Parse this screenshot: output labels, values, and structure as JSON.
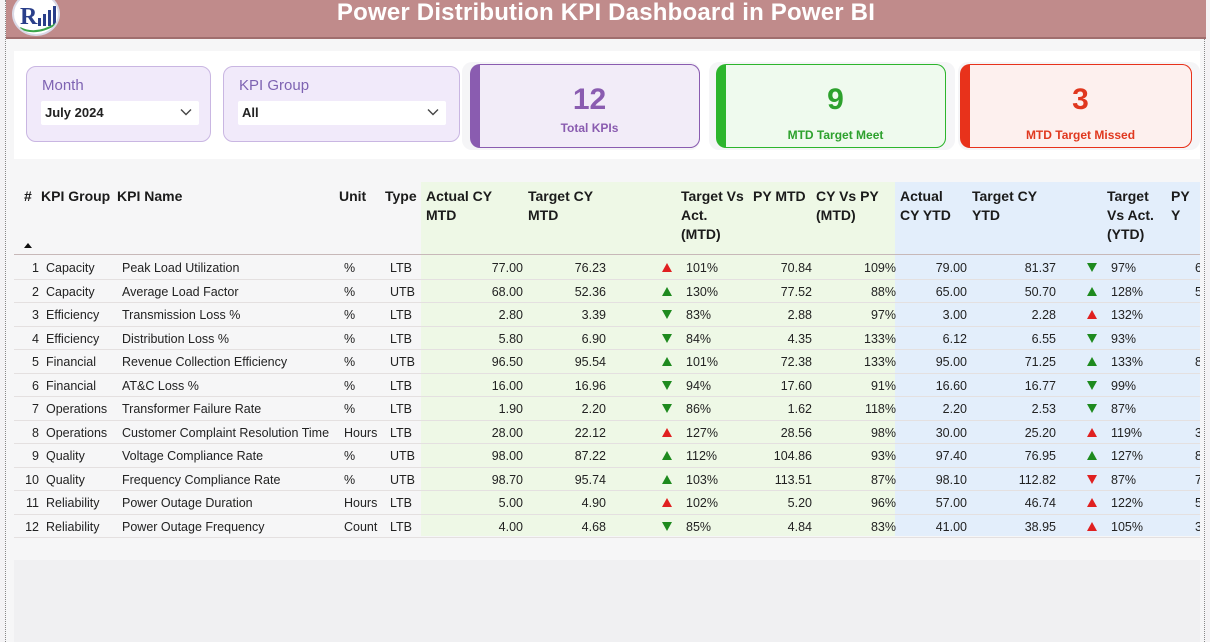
{
  "title": "Power Distribution KPI Dashboard in Power BI",
  "colors": {
    "title_bg": "#c08b8b",
    "total_accent": "#8a5cb0",
    "meet_accent": "#2db52d",
    "missed_accent": "#e8321b",
    "up_neutral": "#1e8a1e",
    "bad": "#e02020"
  },
  "slicers": {
    "month": {
      "label": "Month",
      "value": "July 2024"
    },
    "kpi_group": {
      "label": "KPI Group",
      "value": "All"
    }
  },
  "cards": {
    "total": {
      "value": "12",
      "caption": "Total KPIs"
    },
    "meet": {
      "value": "9",
      "caption": "MTD Target Meet"
    },
    "missed": {
      "value": "3",
      "caption": "MTD Target Missed"
    }
  },
  "table": {
    "headers": {
      "num": "#",
      "group": "KPI Group",
      "name": "KPI Name",
      "unit": "Unit",
      "type": "Type",
      "actual_mtd_1": "Actual CY",
      "actual_mtd_2": "MTD",
      "target_mtd_1": "Target CY",
      "target_mtd_2": "MTD",
      "tva_mtd_1": "Target Vs",
      "tva_mtd_2": "Act.",
      "tva_mtd_3": "(MTD)",
      "py_mtd": "PY MTD",
      "cyvspy_1": "CY Vs PY",
      "cyvspy_2": "(MTD)",
      "actual_ytd_1": "Actual",
      "actual_ytd_2": "CY YTD",
      "target_ytd_1": "Target CY",
      "target_ytd_2": "YTD",
      "tva_ytd_1": "Target",
      "tva_ytd_2": "Vs Act.",
      "tva_ytd_3": "(YTD)",
      "py_ytd": "PY Y"
    },
    "rows": [
      {
        "num": "1",
        "group": "Capacity",
        "name": "Peak Load Utilization",
        "unit": "%",
        "type": "LTB",
        "act_mtd": "77.00",
        "tgt_mtd": "76.23",
        "mtd_icon": "up-red",
        "tva_mtd": "101%",
        "py_mtd": "70.84",
        "cyvspy": "109%",
        "act_ytd": "79.00",
        "tgt_ytd": "81.37",
        "ytd_icon": "down-green",
        "tva_ytd": "97%",
        "py_ytd": "6"
      },
      {
        "num": "2",
        "group": "Capacity",
        "name": "Average Load Factor",
        "unit": "%",
        "type": "UTB",
        "act_mtd": "68.00",
        "tgt_mtd": "52.36",
        "mtd_icon": "up-green",
        "tva_mtd": "130%",
        "py_mtd": "77.52",
        "cyvspy": "88%",
        "act_ytd": "65.00",
        "tgt_ytd": "50.70",
        "ytd_icon": "up-green",
        "tva_ytd": "128%",
        "py_ytd": "5"
      },
      {
        "num": "3",
        "group": "Efficiency",
        "name": "Transmission Loss %",
        "unit": "%",
        "type": "LTB",
        "act_mtd": "2.80",
        "tgt_mtd": "3.39",
        "mtd_icon": "down-green",
        "tva_mtd": "83%",
        "py_mtd": "2.88",
        "cyvspy": "97%",
        "act_ytd": "3.00",
        "tgt_ytd": "2.28",
        "ytd_icon": "up-red",
        "tva_ytd": "132%",
        "py_ytd": ""
      },
      {
        "num": "4",
        "group": "Efficiency",
        "name": "Distribution Loss %",
        "unit": "%",
        "type": "LTB",
        "act_mtd": "5.80",
        "tgt_mtd": "6.90",
        "mtd_icon": "down-green",
        "tva_mtd": "84%",
        "py_mtd": "4.35",
        "cyvspy": "133%",
        "act_ytd": "6.12",
        "tgt_ytd": "6.55",
        "ytd_icon": "down-green",
        "tva_ytd": "93%",
        "py_ytd": ""
      },
      {
        "num": "5",
        "group": "Financial",
        "name": "Revenue Collection Efficiency",
        "unit": "%",
        "type": "UTB",
        "act_mtd": "96.50",
        "tgt_mtd": "95.54",
        "mtd_icon": "up-green",
        "tva_mtd": "101%",
        "py_mtd": "72.38",
        "cyvspy": "133%",
        "act_ytd": "95.00",
        "tgt_ytd": "71.25",
        "ytd_icon": "up-green",
        "tva_ytd": "133%",
        "py_ytd": "8"
      },
      {
        "num": "6",
        "group": "Financial",
        "name": "AT&C Loss %",
        "unit": "%",
        "type": "LTB",
        "act_mtd": "16.00",
        "tgt_mtd": "16.96",
        "mtd_icon": "down-green",
        "tva_mtd": "94%",
        "py_mtd": "17.60",
        "cyvspy": "91%",
        "act_ytd": "16.60",
        "tgt_ytd": "16.77",
        "ytd_icon": "down-green",
        "tva_ytd": "99%",
        "py_ytd": ""
      },
      {
        "num": "7",
        "group": "Operations",
        "name": "Transformer Failure Rate",
        "unit": "%",
        "type": "LTB",
        "act_mtd": "1.90",
        "tgt_mtd": "2.20",
        "mtd_icon": "down-green",
        "tva_mtd": "86%",
        "py_mtd": "1.62",
        "cyvspy": "118%",
        "act_ytd": "2.20",
        "tgt_ytd": "2.53",
        "ytd_icon": "down-green",
        "tva_ytd": "87%",
        "py_ytd": ""
      },
      {
        "num": "8",
        "group": "Operations",
        "name": "Customer Complaint Resolution Time",
        "unit": "Hours",
        "type": "LTB",
        "act_mtd": "28.00",
        "tgt_mtd": "22.12",
        "mtd_icon": "up-red",
        "tva_mtd": "127%",
        "py_mtd": "28.56",
        "cyvspy": "98%",
        "act_ytd": "30.00",
        "tgt_ytd": "25.20",
        "ytd_icon": "up-red",
        "tva_ytd": "119%",
        "py_ytd": "3"
      },
      {
        "num": "9",
        "group": "Quality",
        "name": "Voltage Compliance Rate",
        "unit": "%",
        "type": "UTB",
        "act_mtd": "98.00",
        "tgt_mtd": "87.22",
        "mtd_icon": "up-green",
        "tva_mtd": "112%",
        "py_mtd": "104.86",
        "cyvspy": "93%",
        "act_ytd": "97.40",
        "tgt_ytd": "76.95",
        "ytd_icon": "up-green",
        "tva_ytd": "127%",
        "py_ytd": "8"
      },
      {
        "num": "10",
        "group": "Quality",
        "name": "Frequency Compliance Rate",
        "unit": "%",
        "type": "UTB",
        "act_mtd": "98.70",
        "tgt_mtd": "95.74",
        "mtd_icon": "up-green",
        "tva_mtd": "103%",
        "py_mtd": "113.51",
        "cyvspy": "87%",
        "act_ytd": "98.10",
        "tgt_ytd": "112.82",
        "ytd_icon": "down-red",
        "tva_ytd": "87%",
        "py_ytd": "7"
      },
      {
        "num": "11",
        "group": "Reliability",
        "name": "Power Outage Duration",
        "unit": "Hours",
        "type": "LTB",
        "act_mtd": "5.00",
        "tgt_mtd": "4.90",
        "mtd_icon": "up-red",
        "tva_mtd": "102%",
        "py_mtd": "5.20",
        "cyvspy": "96%",
        "act_ytd": "57.00",
        "tgt_ytd": "46.74",
        "ytd_icon": "up-red",
        "tva_ytd": "122%",
        "py_ytd": "5"
      },
      {
        "num": "12",
        "group": "Reliability",
        "name": "Power Outage Frequency",
        "unit": "Count",
        "type": "LTB",
        "act_mtd": "4.00",
        "tgt_mtd": "4.68",
        "mtd_icon": "down-green",
        "tva_mtd": "85%",
        "py_mtd": "4.84",
        "cyvspy": "83%",
        "act_ytd": "41.00",
        "tgt_ytd": "38.95",
        "ytd_icon": "up-red",
        "tva_ytd": "105%",
        "py_ytd": "3"
      }
    ]
  }
}
